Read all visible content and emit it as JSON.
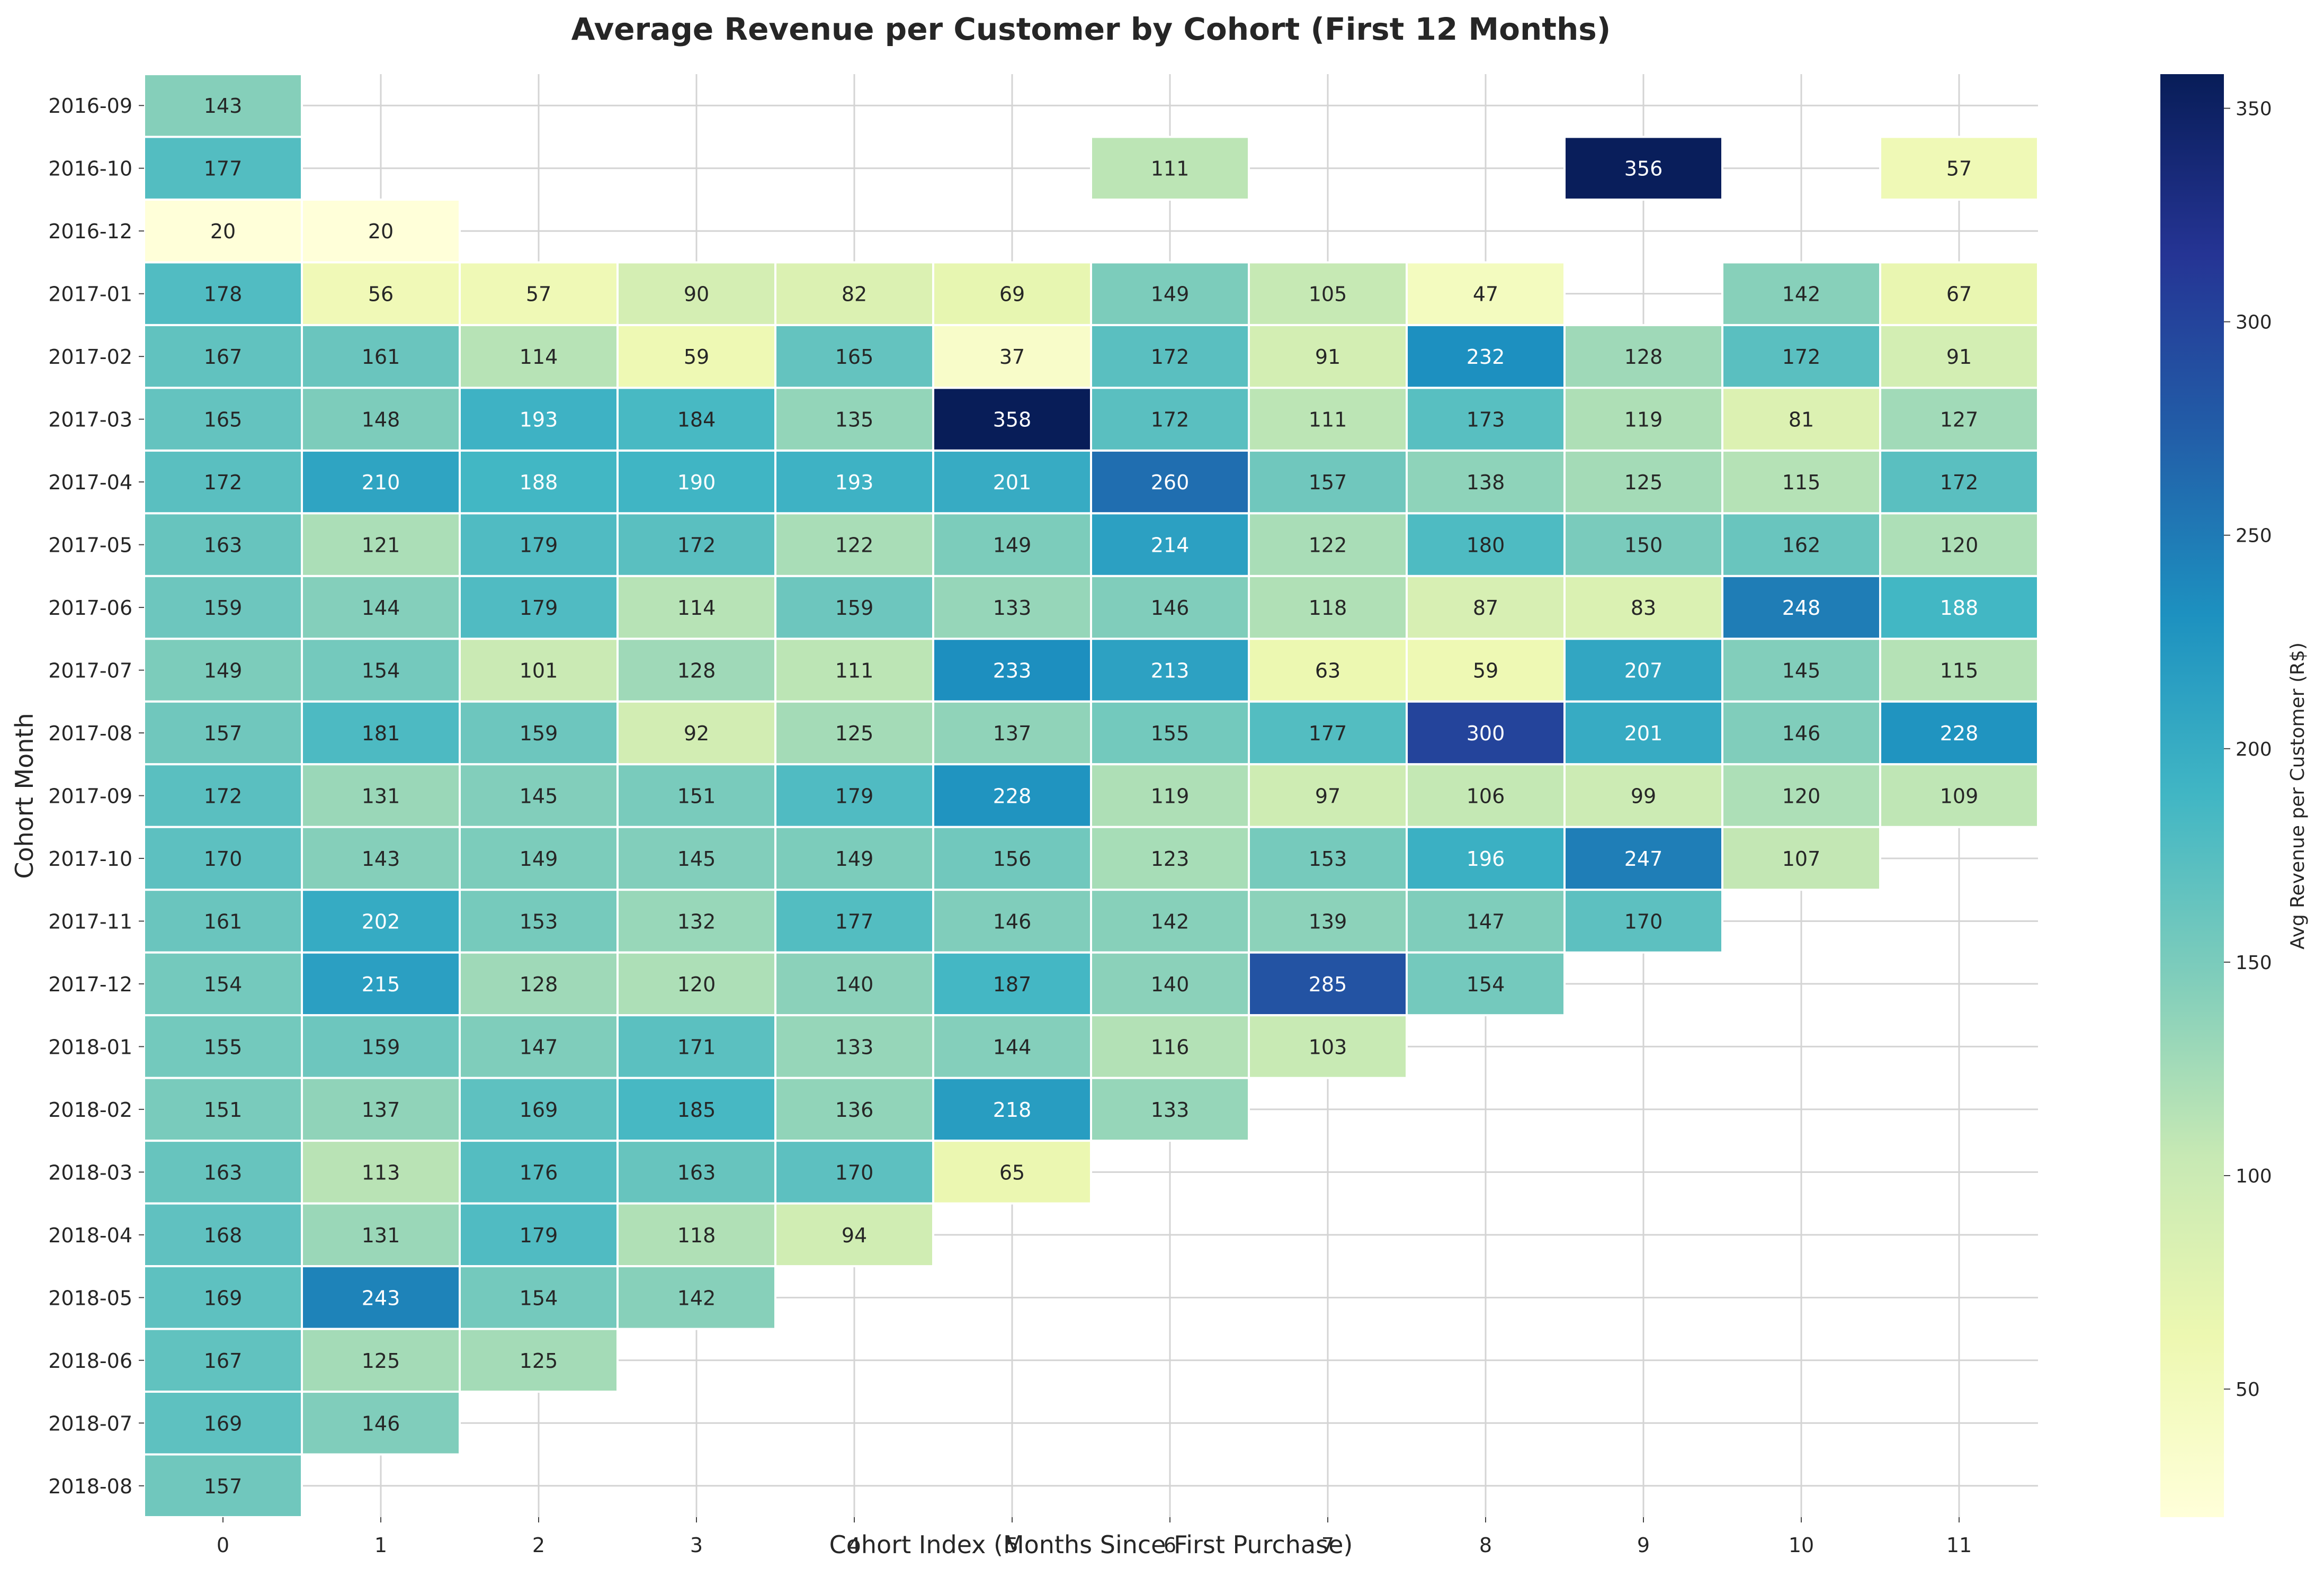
{
  "chart_data": {
    "type": "heatmap",
    "title": "Average Revenue per Customer by Cohort (First 12 Months)",
    "xlabel": "Cohort Index (Months Since First Purchase)",
    "ylabel": "Cohort Month",
    "colorbar_label": "Avg Revenue per Customer (R$)",
    "colormap": "YlGnBu",
    "color_range": [
      20,
      358
    ],
    "colorbar_ticks": [
      50,
      100,
      150,
      200,
      250,
      300,
      350
    ],
    "grid": true,
    "x": [
      0,
      1,
      2,
      3,
      4,
      5,
      6,
      7,
      8,
      9,
      10,
      11
    ],
    "y": [
      "2016-09",
      "2016-10",
      "2016-12",
      "2017-01",
      "2017-02",
      "2017-03",
      "2017-04",
      "2017-05",
      "2017-06",
      "2017-07",
      "2017-08",
      "2017-09",
      "2017-10",
      "2017-11",
      "2017-12",
      "2018-01",
      "2018-02",
      "2018-03",
      "2018-04",
      "2018-05",
      "2018-06",
      "2018-07",
      "2018-08"
    ],
    "values": [
      [
        143,
        null,
        null,
        null,
        null,
        null,
        null,
        null,
        null,
        null,
        null,
        null
      ],
      [
        177,
        null,
        null,
        null,
        null,
        null,
        111,
        null,
        null,
        356,
        null,
        57
      ],
      [
        20,
        20,
        null,
        null,
        null,
        null,
        null,
        null,
        null,
        null,
        null,
        null
      ],
      [
        178,
        56,
        57,
        90,
        82,
        69,
        149,
        105,
        47,
        null,
        142,
        67
      ],
      [
        167,
        161,
        114,
        59,
        165,
        37,
        172,
        91,
        232,
        128,
        172,
        91
      ],
      [
        165,
        148,
        193,
        184,
        135,
        358,
        172,
        111,
        173,
        119,
        81,
        127
      ],
      [
        172,
        210,
        188,
        190,
        193,
        201,
        260,
        157,
        138,
        125,
        115,
        172
      ],
      [
        163,
        121,
        179,
        172,
        122,
        149,
        214,
        122,
        180,
        150,
        162,
        120
      ],
      [
        159,
        144,
        179,
        114,
        159,
        133,
        146,
        118,
        87,
        83,
        248,
        188
      ],
      [
        149,
        154,
        101,
        128,
        111,
        233,
        213,
        63,
        59,
        207,
        145,
        115
      ],
      [
        157,
        181,
        159,
        92,
        125,
        137,
        155,
        177,
        300,
        201,
        146,
        228
      ],
      [
        172,
        131,
        145,
        151,
        179,
        228,
        119,
        97,
        106,
        99,
        120,
        109
      ],
      [
        170,
        143,
        149,
        145,
        149,
        156,
        123,
        153,
        196,
        247,
        107,
        null
      ],
      [
        161,
        202,
        153,
        132,
        177,
        146,
        142,
        139,
        147,
        170,
        null,
        null
      ],
      [
        154,
        215,
        128,
        120,
        140,
        187,
        140,
        285,
        154,
        null,
        null,
        null
      ],
      [
        155,
        159,
        147,
        171,
        133,
        144,
        116,
        103,
        null,
        null,
        null,
        null
      ],
      [
        151,
        137,
        169,
        185,
        136,
        218,
        133,
        null,
        null,
        null,
        null,
        null
      ],
      [
        163,
        113,
        176,
        163,
        170,
        65,
        null,
        null,
        null,
        null,
        null,
        null
      ],
      [
        168,
        131,
        179,
        118,
        94,
        null,
        null,
        null,
        null,
        null,
        null,
        null
      ],
      [
        169,
        243,
        154,
        142,
        null,
        null,
        null,
        null,
        null,
        null,
        null,
        null
      ],
      [
        167,
        125,
        125,
        null,
        null,
        null,
        null,
        null,
        null,
        null,
        null,
        null
      ],
      [
        169,
        146,
        null,
        null,
        null,
        null,
        null,
        null,
        null,
        null,
        null,
        null
      ],
      [
        157,
        null,
        null,
        null,
        null,
        null,
        null,
        null,
        null,
        null,
        null,
        null
      ]
    ]
  }
}
